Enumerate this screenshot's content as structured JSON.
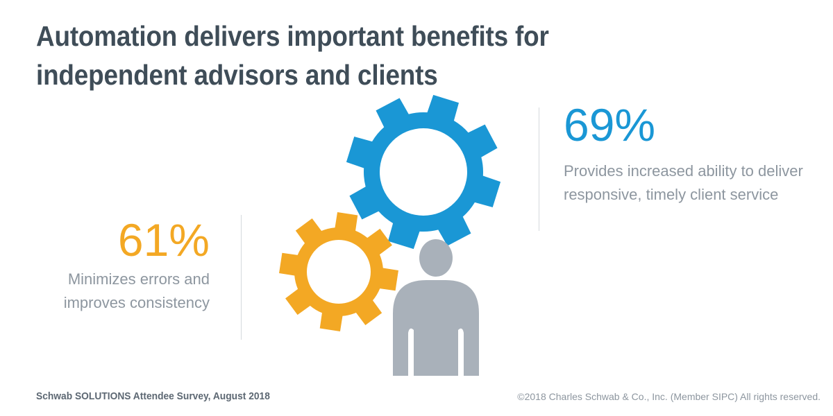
{
  "header": {
    "title": "Automation delivers important benefits for independent advisors and clients"
  },
  "stats": {
    "right": {
      "percent": "69%",
      "description": "Provides increased ability to deliver responsive, timely client service",
      "color": "#1a97d5"
    },
    "left": {
      "percent": "61%",
      "description": "Minimizes errors and improves consistency",
      "color": "#f3a824"
    }
  },
  "illustration": {
    "icons": [
      "large-blue-gear-icon",
      "small-orange-gear-icon",
      "person-icon"
    ],
    "colors": {
      "blue_gear": "#1a97d5",
      "orange_gear": "#f3a824",
      "person": "#a9b1ba"
    }
  },
  "footer": {
    "source": "Schwab SOLUTIONS Attendee Survey, August 2018",
    "copyright": "©2018 Charles Schwab & Co., Inc. (Member SIPC) All rights reserved."
  }
}
